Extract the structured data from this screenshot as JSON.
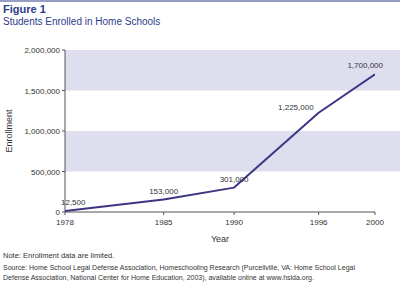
{
  "chart_data": {
    "type": "line",
    "title": "Figure 1",
    "subtitle": "Students Enrolled in Home Schools",
    "x_label": "Year",
    "y_label": "Enrollment",
    "x": [
      1978,
      1985,
      1990,
      1996,
      2000
    ],
    "values": [
      12500,
      153000,
      301000,
      1225000,
      1700000
    ],
    "value_labels": [
      "12,500",
      "153,000",
      "301,000",
      "1,225,000",
      "1,700,000"
    ],
    "data_labels": true,
    "color": "#3b3583",
    "xlim": [
      1978,
      2000
    ],
    "xticks": [
      1978,
      1985,
      1990,
      1996,
      2000
    ],
    "ylim": [
      0,
      2000000
    ],
    "yticks": [
      0,
      {
        "value": 500000,
        "label": "500,000"
      },
      {
        "value": 1000000,
        "label": "1,000,000"
      },
      {
        "value": 1500000,
        "label": "1,500,000"
      },
      {
        "value": 2000000,
        "label": "2,000,000"
      }
    ],
    "grid": true,
    "notes": [
      "Note: Enrollment data are limited."
    ],
    "source": [
      "Source: Home School Legal Defense Association, Homeschooling Research (Purcellville, VA: Home School Legal",
      "Defense Association, National Center for Home Education, 2003), available online at www.hslda.org."
    ]
  }
}
